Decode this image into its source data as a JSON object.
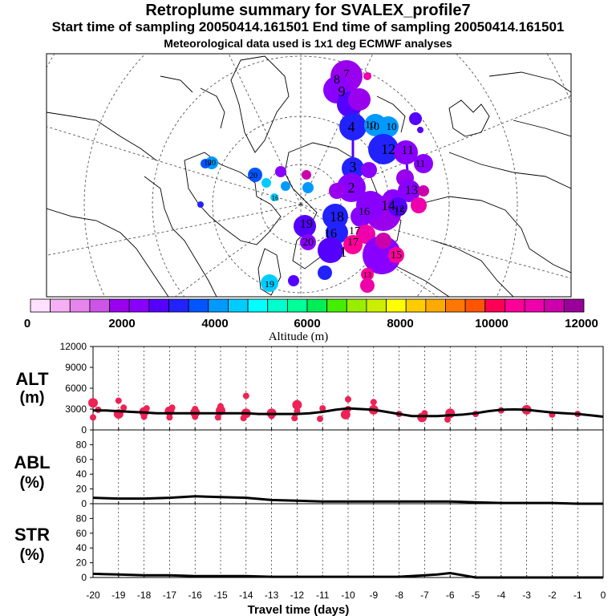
{
  "titles": {
    "line1": "Retroplume summary for SVALEX_profile7",
    "line2": "Start time of sampling 20050414.161501     End time of sampling 20050414.161501",
    "line3": "Meteorological data used is 1x1 deg ECMWF analyses"
  },
  "colorbar": {
    "label": "Altitude (m)",
    "tick_labels": [
      "0",
      "2000",
      "4000",
      "6000",
      "8000",
      "10000",
      "12000"
    ],
    "colors": [
      "#ffe0ff",
      "#f5b0f5",
      "#e685ee",
      "#cc55e8",
      "#9900ee",
      "#8a00ff",
      "#5500ff",
      "#2222ff",
      "#0055ff",
      "#0099ff",
      "#00ccff",
      "#00ffff",
      "#00ffcc",
      "#00ff99",
      "#00ee55",
      "#44ee00",
      "#99ee00",
      "#ccee00",
      "#ffff00",
      "#ffcc00",
      "#ffaa00",
      "#ff7700",
      "#ff5500",
      "#ff0055",
      "#ff0099",
      "#ee00aa",
      "#cc00aa",
      "#990099"
    ]
  },
  "map": {
    "labels": [
      {
        "t": "9"
      },
      {
        "t": "8"
      },
      {
        "t": "7"
      },
      {
        "t": "10"
      },
      {
        "t": "10"
      },
      {
        "t": "4"
      },
      {
        "t": "11"
      },
      {
        "t": "12"
      },
      {
        "t": "13"
      },
      {
        "t": "3"
      },
      {
        "t": "2"
      },
      {
        "t": "14"
      },
      {
        "t": "15"
      },
      {
        "t": "16"
      },
      {
        "t": "18"
      },
      {
        "t": "19"
      },
      {
        "t": "20"
      },
      {
        "t": "17"
      },
      {
        "t": "1"
      },
      {
        "t": "16"
      },
      {
        "t": "15"
      },
      {
        "t": "19"
      },
      {
        "t": "20"
      },
      {
        "t": "19"
      },
      {
        "t": "20"
      },
      {
        "t": "16"
      },
      {
        "t": "17"
      },
      {
        "t": "11"
      },
      {
        "t": "10"
      },
      {
        "t": "12"
      },
      {
        "t": "13"
      }
    ]
  },
  "chart_data": [
    {
      "type": "scatter+line",
      "panel": "ALT",
      "ylabel": "ALT\n(m)",
      "ylim": [
        0,
        12000
      ],
      "yticks": [
        "12000",
        "9000",
        "6000",
        "3000",
        "0"
      ],
      "median_line": {
        "x": [
          -20,
          -19.5,
          -19,
          -18.5,
          -18,
          -17.5,
          -17,
          -16.5,
          -16,
          -15.5,
          -15,
          -14.5,
          -14,
          -13.5,
          -13,
          -12.5,
          -12,
          -11.5,
          -11,
          -10.5,
          -10,
          -9.5,
          -9,
          -8.5,
          -8,
          -7.5,
          -7,
          -6.5,
          -6,
          -5.5,
          -5,
          -4.5,
          -4,
          -3.5,
          -3,
          -2.5,
          -2,
          -1.5,
          -1,
          -0.5,
          0
        ],
        "y": [
          2800,
          2800,
          2700,
          2600,
          2500,
          2400,
          2400,
          2400,
          2400,
          2400,
          2400,
          2400,
          2400,
          2300,
          2300,
          2300,
          2300,
          2400,
          2600,
          2900,
          3100,
          3000,
          2900,
          2600,
          2300,
          2000,
          2000,
          2000,
          2100,
          2200,
          2400,
          2700,
          2900,
          2950,
          2900,
          2700,
          2500,
          2400,
          2300,
          2100,
          1900
        ]
      },
      "points": {
        "x": [
          -20,
          -20,
          -19.8,
          -19,
          -19,
          -18.8,
          -18,
          -18,
          -17.9,
          -17,
          -17,
          -16.9,
          -16,
          -16,
          -16,
          -15.1,
          -15,
          -15,
          -14.1,
          -14,
          -14,
          -13,
          -13,
          -12.1,
          -12,
          -12,
          -11.1,
          -11,
          -10.1,
          -10,
          -10,
          -9,
          -9,
          -8,
          -7.1,
          -7,
          -6.1,
          -6,
          -5,
          -4,
          -3,
          -2,
          -1
        ],
        "y": [
          1800,
          3900,
          2900,
          4200,
          2300,
          3200,
          1900,
          2600,
          3100,
          1800,
          2700,
          3200,
          1900,
          2500,
          3000,
          1800,
          2800,
          3400,
          1700,
          2400,
          4900,
          2000,
          2400,
          1700,
          2700,
          3600,
          1600,
          3100,
          2200,
          3000,
          4400,
          2900,
          4000,
          2300,
          1800,
          2400,
          1500,
          2400,
          2300,
          2800,
          2900,
          2200,
          2300
        ],
        "color": "#ee2255"
      }
    },
    {
      "type": "line",
      "panel": "ABL",
      "ylabel": "ABL\n(%)",
      "ylim": [
        0,
        100
      ],
      "yticks": [
        "80",
        "60",
        "40",
        "20",
        "0"
      ],
      "x": [
        -20,
        -19,
        -18,
        -17,
        -16,
        -15,
        -14,
        -13,
        -12,
        -11,
        -10,
        -9,
        -8,
        -7,
        -6,
        -5,
        -4,
        -3,
        -2,
        -1,
        0
      ],
      "y": [
        8,
        7,
        7,
        8,
        10,
        9,
        8,
        5,
        4,
        3,
        3,
        3,
        3,
        3,
        3,
        2,
        1,
        1,
        1,
        0,
        0
      ]
    },
    {
      "type": "line",
      "panel": "STR",
      "ylabel": "STR\n(%)",
      "ylim": [
        0,
        100
      ],
      "yticks": [
        "80",
        "60",
        "40",
        "20",
        "0"
      ],
      "xlabel": "Travel time (days)",
      "xlim": [
        -20,
        0
      ],
      "xticks": [
        "-20",
        "-19",
        "-18",
        "-17",
        "-16",
        "-15",
        "-14",
        "-13",
        "-12",
        "-11",
        "-10",
        "-9",
        "-8",
        "-7",
        "-6",
        "-5",
        "-4",
        "-3",
        "-2",
        "-1",
        "0"
      ],
      "x": [
        -20,
        -19,
        -18,
        -17,
        -16,
        -15,
        -14,
        -13,
        -12,
        -11,
        -10,
        -9,
        -8,
        -7,
        -6.5,
        -6,
        -5.5,
        -5,
        -4,
        -3,
        -2,
        -1,
        0
      ],
      "y": [
        5,
        4,
        3,
        3,
        2,
        2,
        2,
        1,
        1,
        1,
        1,
        1,
        1,
        3,
        4,
        6,
        3,
        0,
        0,
        0,
        0,
        0,
        0
      ]
    }
  ]
}
